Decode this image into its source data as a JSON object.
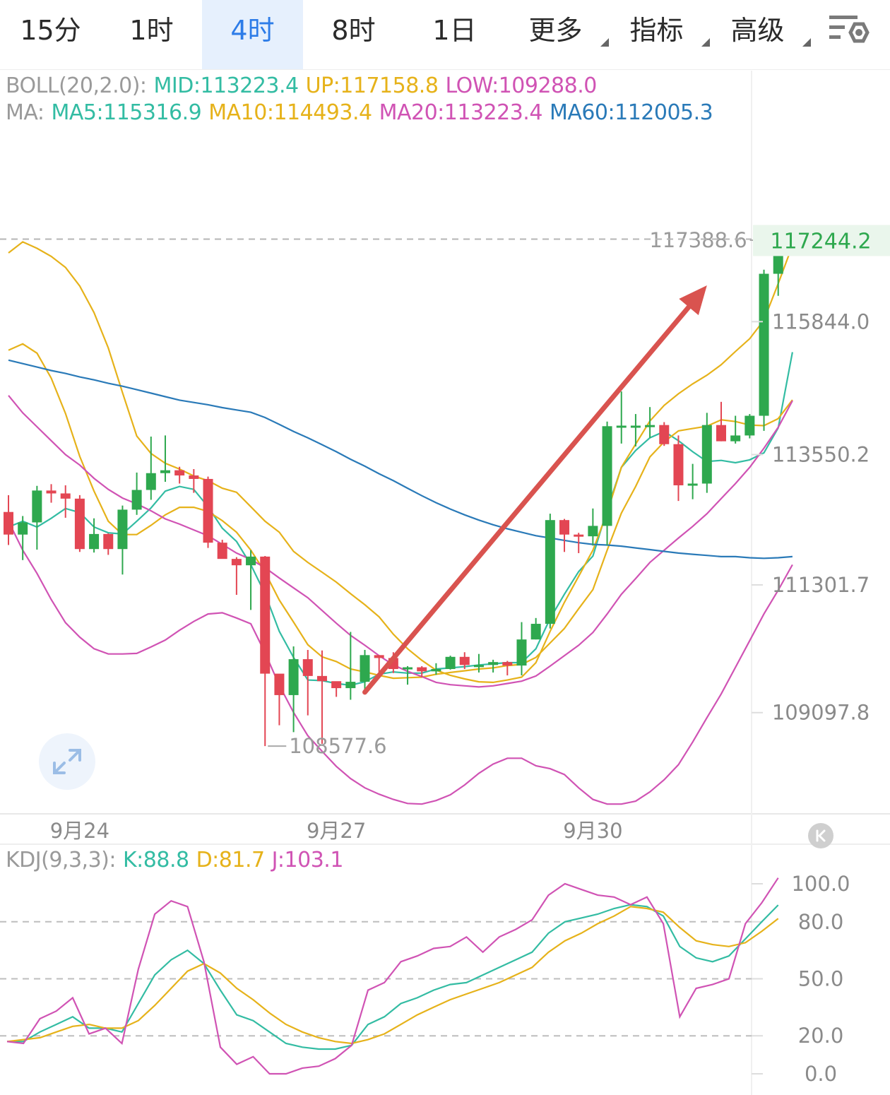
{
  "tabs": [
    {
      "label": "15分",
      "active": false,
      "dropdown": false
    },
    {
      "label": "1时",
      "active": false,
      "dropdown": false
    },
    {
      "label": "4时",
      "active": true,
      "dropdown": false
    },
    {
      "label": "8时",
      "active": false,
      "dropdown": false
    },
    {
      "label": "1日",
      "active": false,
      "dropdown": false
    },
    {
      "label": "更多",
      "active": false,
      "dropdown": true
    },
    {
      "label": "指标",
      "active": false,
      "dropdown": true
    },
    {
      "label": "高级",
      "active": false,
      "dropdown": true
    }
  ],
  "settings_icon": "chart-settings-icon",
  "boll": {
    "label": "BOLL(20,2.0):",
    "mid": "MID:113223.4",
    "up": "UP:117158.8",
    "low": "LOW:109288.0"
  },
  "ma": {
    "label": "MA:",
    "ma5": "MA5:115316.9",
    "ma10": "MA10:114493.4",
    "ma20": "MA20:113223.4",
    "ma60": "MA60:112005.3"
  },
  "kdj": {
    "label": "KDJ(9,3,3):",
    "k": "K:88.8",
    "d": "D:81.7",
    "j": "J:103.1"
  },
  "colors": {
    "up": "#2ea84e",
    "down": "#e34653",
    "mid": "#33bca3",
    "upper": "#e6b21a",
    "lower": "#d053b4",
    "ma60": "#2a7ab8",
    "arrow": "#d9534f",
    "accent": "#2d7ce8"
  },
  "chart_data": [
    {
      "type": "candlestick",
      "timeframe": "4时",
      "ylim": [
        107400,
        119200
      ],
      "price_axis_labels": [
        "115844.0",
        "113550.2",
        "111301.7",
        "109097.8"
      ],
      "price_axis_values": [
        115844.0,
        113550.2,
        111301.7,
        109097.8
      ],
      "last_price": "117244.2",
      "high_marker": "117388.6",
      "low_marker": "108577.6",
      "x_labels": [
        {
          "index": 5,
          "label": "9月24"
        },
        {
          "index": 23,
          "label": "9月27"
        },
        {
          "index": 41,
          "label": "9月30"
        }
      ],
      "candles": [
        [
          112560,
          112170,
          112850,
          111990
        ],
        [
          112170,
          112380,
          112490,
          111730
        ],
        [
          112380,
          112930,
          113010,
          111910
        ],
        [
          112930,
          112880,
          113040,
          112720
        ],
        [
          112880,
          112790,
          113020,
          112460
        ],
        [
          112790,
          111920,
          112850,
          111870
        ],
        [
          111920,
          112180,
          112450,
          111860
        ],
        [
          112180,
          111920,
          112190,
          111820
        ],
        [
          111920,
          112600,
          112670,
          111480
        ],
        [
          112600,
          112940,
          113240,
          112510
        ],
        [
          112940,
          113230,
          113860,
          112770
        ],
        [
          113230,
          113280,
          113880,
          113080
        ],
        [
          113280,
          113190,
          113340,
          113050
        ],
        [
          113190,
          113130,
          113300,
          112890
        ],
        [
          113130,
          112030,
          113170,
          111940
        ],
        [
          112030,
          111750,
          112080,
          111800
        ],
        [
          111750,
          111640,
          111780,
          111130
        ],
        [
          111640,
          111790,
          111900,
          110870
        ],
        [
          111790,
          109770,
          111800,
          108520
        ],
        [
          109770,
          109400,
          109760,
          108880
        ],
        [
          109400,
          110020,
          110240,
          108760
        ],
        [
          110020,
          109730,
          110180,
          109050
        ],
        [
          109730,
          109640,
          110170,
          108560
        ],
        [
          109640,
          109520,
          109620,
          109370
        ],
        [
          109520,
          109630,
          110490,
          109320
        ],
        [
          109630,
          110090,
          110180,
          109420
        ],
        [
          110090,
          110040,
          110070,
          109800
        ],
        [
          110040,
          109850,
          110140,
          109780
        ],
        [
          109850,
          109880,
          109900,
          109580
        ],
        [
          109880,
          109810,
          109900,
          109710
        ],
        [
          109810,
          109850,
          109950,
          109750
        ],
        [
          109850,
          110060,
          110080,
          109840
        ],
        [
          110060,
          109920,
          110140,
          109850
        ],
        [
          109920,
          109920,
          110110,
          109790
        ],
        [
          109920,
          109970,
          110010,
          109790
        ],
        [
          109970,
          109910,
          109990,
          109740
        ],
        [
          109910,
          110360,
          110660,
          109740
        ],
        [
          110360,
          110630,
          110730,
          110360
        ],
        [
          110630,
          112420,
          112530,
          110550
        ],
        [
          112420,
          112170,
          112440,
          111870
        ],
        [
          112170,
          112140,
          112200,
          111850
        ],
        [
          112140,
          112320,
          112620,
          111980
        ],
        [
          112320,
          114040,
          114120,
          111980
        ],
        [
          114040,
          114050,
          114640,
          113740
        ],
        [
          114050,
          114050,
          114250,
          113690
        ],
        [
          114050,
          114060,
          114370,
          113840
        ],
        [
          114060,
          113730,
          114110,
          113700
        ],
        [
          113730,
          113020,
          113880,
          112750
        ],
        [
          113020,
          113050,
          113390,
          112780
        ],
        [
          113050,
          114060,
          114270,
          112890
        ],
        [
          114060,
          113780,
          114460,
          113780
        ],
        [
          113780,
          113880,
          114220,
          113740
        ],
        [
          113880,
          114220,
          114250,
          113830
        ],
        [
          114220,
          116670,
          116740,
          113960
        ],
        [
          116670,
          117140,
          117250,
          116290
        ]
      ],
      "series": [
        {
          "name": "MA5",
          "values": [
            112300,
            112400,
            112300,
            112450,
            112620,
            112550,
            112300,
            112200,
            112180,
            112400,
            112630,
            112920,
            113000,
            112950,
            112650,
            112280,
            112050,
            111650,
            111150,
            110500,
            110050,
            109660,
            109650,
            109600,
            109570,
            109630,
            109760,
            109800,
            109780,
            109780,
            109850,
            109870,
            109890,
            109920,
            109940,
            109960,
            109960,
            110200,
            110720,
            111140,
            111530,
            111800,
            112600,
            113330,
            113620,
            113840,
            113950,
            113790,
            113600,
            113430,
            113450,
            113410,
            113460,
            113580,
            114010,
            115317
          ]
        },
        {
          "name": "MA10",
          "values": [
            115350,
            115460,
            115300,
            114870,
            114260,
            113520,
            112920,
            112400,
            112170,
            112170,
            112330,
            112510,
            112640,
            112640,
            112570,
            112410,
            112210,
            111900,
            111520,
            111040,
            110660,
            110270,
            110060,
            109980,
            109850,
            109800,
            109740,
            109690,
            109700,
            109710,
            109760,
            109790,
            109820,
            109850,
            109870,
            109910,
            109930,
            110050,
            110300,
            110550,
            110890,
            111220,
            111900,
            112540,
            113000,
            113510,
            113770,
            113960,
            114000,
            114040,
            114150,
            114120,
            114060,
            114050,
            114170,
            114493
          ]
        },
        {
          "name": "MA20",
          "values": [
            114570,
            114270,
            114030,
            113790,
            113550,
            113370,
            113140,
            112950,
            112800,
            112700,
            112580,
            112440,
            112350,
            112250,
            112150,
            112000,
            111850,
            111740,
            111600,
            111420,
            111250,
            111080,
            110860,
            110640,
            110430,
            110260,
            110080,
            109920,
            109810,
            109720,
            109620,
            109580,
            109560,
            109540,
            109560,
            109600,
            109640,
            109730,
            109900,
            110080,
            110260,
            110480,
            110800,
            111140,
            111410,
            111690,
            111900,
            112110,
            112310,
            112530,
            112790,
            113050,
            113330,
            113660,
            114020,
            114480
          ]
        },
        {
          "name": "UP",
          "values": [
            117030,
            117220,
            117110,
            116970,
            116780,
            116460,
            116000,
            115390,
            114620,
            113870,
            113570,
            113400,
            113300,
            113180,
            113100,
            112970,
            112900,
            112650,
            112400,
            112210,
            111880,
            111690,
            111520,
            111350,
            111150,
            110960,
            110750,
            110450,
            110200,
            110000,
            109830,
            109740,
            109680,
            109630,
            109620,
            109660,
            109710,
            109960,
            110500,
            111000,
            111450,
            111900,
            112550,
            113330,
            113730,
            114130,
            114400,
            114600,
            114770,
            114920,
            115100,
            115330,
            115550,
            115870,
            116500,
            117159
          ]
        },
        {
          "name": "LOW",
          "values": [
            112400,
            111900,
            111500,
            111050,
            110650,
            110400,
            110200,
            110110,
            110110,
            110120,
            110230,
            110350,
            110520,
            110670,
            110800,
            110820,
            110730,
            110630,
            110130,
            109570,
            109100,
            108700,
            108430,
            108170,
            107960,
            107800,
            107690,
            107600,
            107530,
            107520,
            107580,
            107680,
            107850,
            108050,
            108210,
            108310,
            108310,
            108180,
            108130,
            108030,
            107800,
            107600,
            107520,
            107520,
            107570,
            107730,
            107940,
            108200,
            108590,
            109010,
            109420,
            109880,
            110340,
            110800,
            111210,
            111650
          ]
        },
        {
          "name": "MA60",
          "values": [
            115180,
            115120,
            115060,
            115000,
            114950,
            114890,
            114840,
            114780,
            114730,
            114670,
            114610,
            114550,
            114490,
            114450,
            114410,
            114360,
            114320,
            114280,
            114190,
            114070,
            113950,
            113840,
            113720,
            113600,
            113470,
            113350,
            113220,
            113100,
            112970,
            112840,
            112720,
            112610,
            112510,
            112420,
            112340,
            112270,
            112210,
            112150,
            112110,
            112070,
            112030,
            112000,
            111990,
            111970,
            111940,
            111910,
            111880,
            111850,
            111830,
            111810,
            111790,
            111790,
            111770,
            111760,
            111770,
            111790
          ]
        }
      ],
      "annotation": {
        "type": "arrow",
        "from": {
          "index": 25,
          "value": 109450
        },
        "to": {
          "index": 49,
          "value": 116470
        }
      }
    },
    {
      "type": "line",
      "indicator": "KDJ(9,3,3)",
      "ylim": [
        0,
        100
      ],
      "axis_labels": [
        "100.0",
        "80.0",
        "50.0",
        "20.0",
        "0.0"
      ],
      "axis_values": [
        100,
        80,
        50,
        20,
        0
      ],
      "series": [
        {
          "name": "K",
          "values": [
            17,
            17,
            22,
            26,
            30,
            24,
            24,
            22,
            37,
            52,
            60,
            65,
            58,
            44,
            31,
            28,
            22,
            16,
            14,
            13,
            13,
            15,
            26,
            30,
            37,
            40,
            44,
            47,
            48,
            52,
            56,
            60,
            64,
            74,
            80,
            82,
            84,
            87,
            89,
            88,
            83,
            67,
            61,
            59,
            62,
            71,
            80,
            88.8
          ]
        },
        {
          "name": "D",
          "values": [
            17,
            18,
            19,
            22,
            25,
            26,
            24,
            24,
            28,
            36,
            45,
            54,
            58,
            53,
            45,
            39,
            32,
            26,
            22,
            19,
            17,
            16,
            18,
            21,
            26,
            31,
            35,
            39,
            42,
            45,
            48,
            52,
            56,
            64,
            70,
            74,
            79,
            83,
            88,
            87,
            85,
            77,
            70,
            68,
            67,
            69,
            75,
            81.7
          ]
        },
        {
          "name": "J",
          "values": [
            17,
            16,
            29,
            33,
            40,
            21,
            24,
            16,
            55,
            84,
            91,
            88,
            59,
            14,
            5,
            9,
            0,
            0,
            3,
            4,
            8,
            15,
            44,
            48,
            59,
            62,
            66,
            67,
            72,
            64,
            72,
            76,
            81,
            94,
            100,
            97,
            94,
            93,
            89,
            93,
            79,
            30,
            45,
            47,
            50,
            79,
            90,
            103.1
          ]
        }
      ]
    }
  ]
}
